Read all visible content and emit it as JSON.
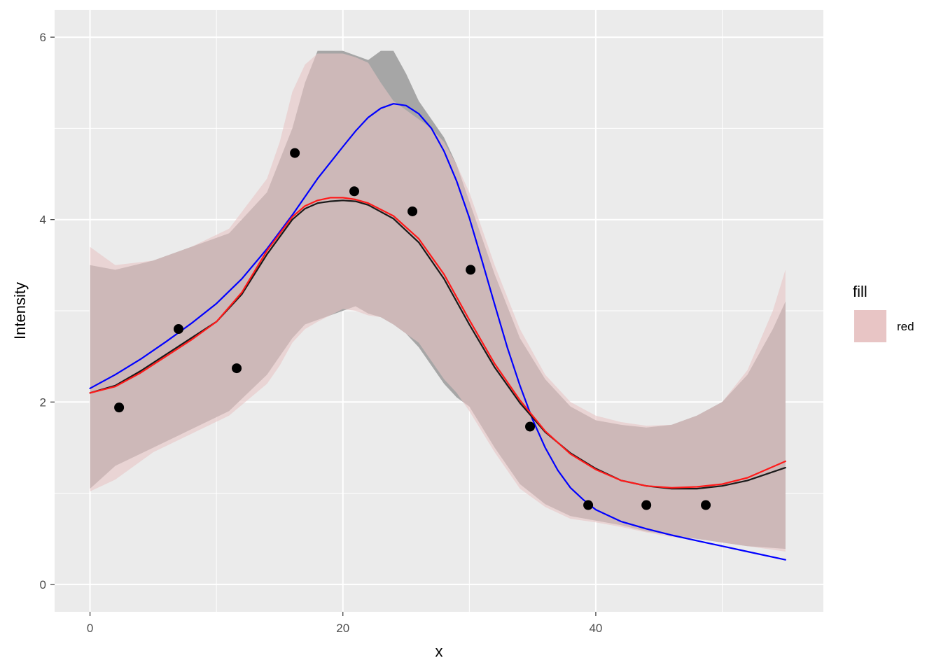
{
  "chart_data": {
    "type": "line",
    "xlabel": "x",
    "ylabel": "Intensity",
    "xlim": [
      -2.8,
      58
    ],
    "ylim": [
      -0.3,
      6.3
    ],
    "x_ticks": [
      0,
      20,
      40
    ],
    "x_tick_labels": [
      "0",
      "20",
      "40"
    ],
    "y_ticks": [
      0,
      2,
      4,
      6
    ],
    "y_tick_labels": [
      "0",
      "2",
      "4",
      "6"
    ],
    "grid": true,
    "legend": {
      "title": "fill",
      "position": "right",
      "items": [
        {
          "label": "red",
          "color": "#e8c5c5"
        }
      ]
    },
    "colors": {
      "panel": "#ebebeb",
      "grid": "#ffffff",
      "band_gray": "#a6a6a6",
      "band_red": "#e8c5c5",
      "blue": "#0000ff",
      "red": "#ff1a1a",
      "black": "#1a1a1a"
    },
    "points": {
      "x": [
        2.3,
        7,
        11.6,
        16.2,
        20.9,
        25.5,
        30.1,
        34.8,
        39.4,
        44,
        48.7
      ],
      "y": [
        1.94,
        2.8,
        2.37,
        4.73,
        4.31,
        4.09,
        3.45,
        1.73,
        0.87,
        0.87,
        0.87
      ]
    },
    "band_gray": {
      "x": [
        0,
        2,
        5,
        8,
        11,
        14,
        16,
        17,
        18,
        19,
        20,
        21,
        22,
        23,
        24,
        25,
        26,
        27,
        28,
        29,
        30,
        32,
        34,
        36,
        38,
        40,
        42,
        44,
        46,
        48,
        50,
        52,
        54,
        55
      ],
      "upper": [
        3.5,
        3.45,
        3.55,
        3.7,
        3.85,
        4.3,
        5.0,
        5.5,
        5.85,
        5.85,
        5.85,
        5.8,
        5.75,
        5.85,
        5.85,
        5.6,
        5.3,
        5.1,
        4.9,
        4.6,
        4.2,
        3.4,
        2.7,
        2.25,
        1.95,
        1.8,
        1.75,
        1.72,
        1.75,
        1.85,
        2.0,
        2.3,
        2.8,
        3.1
      ],
      "lower": [
        1.05,
        1.3,
        1.5,
        1.7,
        1.9,
        2.3,
        2.7,
        2.85,
        2.9,
        2.95,
        3.0,
        3.05,
        2.97,
        2.93,
        2.85,
        2.75,
        2.6,
        2.4,
        2.2,
        2.05,
        1.95,
        1.5,
        1.1,
        0.88,
        0.75,
        0.7,
        0.65,
        0.58,
        0.54,
        0.5,
        0.46,
        0.42,
        0.4,
        0.39
      ]
    },
    "band_red": {
      "x": [
        0,
        2,
        5,
        8,
        11,
        14,
        15,
        16,
        17,
        18,
        19,
        20,
        21,
        22,
        23,
        24,
        25,
        26,
        27,
        28,
        29,
        30,
        32,
        34,
        36,
        38,
        40,
        42,
        44,
        46,
        48,
        50,
        52,
        54,
        55
      ],
      "upper": [
        3.7,
        3.5,
        3.55,
        3.7,
        3.9,
        4.45,
        4.85,
        5.4,
        5.7,
        5.82,
        5.82,
        5.82,
        5.78,
        5.72,
        5.5,
        5.3,
        5.2,
        5.1,
        5.0,
        4.85,
        4.6,
        4.3,
        3.5,
        2.8,
        2.3,
        2.0,
        1.85,
        1.78,
        1.74,
        1.75,
        1.85,
        2.0,
        2.35,
        3.0,
        3.45
      ],
      "lower": [
        1.02,
        1.15,
        1.45,
        1.65,
        1.85,
        2.2,
        2.4,
        2.65,
        2.8,
        2.88,
        2.95,
        3.02,
        3.0,
        2.95,
        2.93,
        2.85,
        2.75,
        2.65,
        2.45,
        2.25,
        2.1,
        1.9,
        1.45,
        1.05,
        0.85,
        0.72,
        0.68,
        0.63,
        0.57,
        0.52,
        0.5,
        0.46,
        0.42,
        0.38,
        0.36
      ]
    },
    "series": [
      {
        "color": "#0000ff",
        "x": [
          0,
          2,
          4,
          6,
          8,
          10,
          12,
          14,
          16,
          18,
          20,
          21,
          22,
          23,
          24,
          25,
          26,
          27,
          28,
          29,
          30,
          31,
          32,
          33,
          34,
          35,
          36,
          37,
          38,
          39,
          40,
          42,
          44,
          46,
          48,
          50,
          52,
          55
        ],
        "y": [
          2.15,
          2.3,
          2.47,
          2.66,
          2.86,
          3.08,
          3.35,
          3.68,
          4.05,
          4.45,
          4.8,
          4.97,
          5.12,
          5.22,
          5.27,
          5.25,
          5.16,
          5.0,
          4.75,
          4.42,
          4.02,
          3.55,
          3.07,
          2.6,
          2.18,
          1.81,
          1.5,
          1.25,
          1.06,
          0.93,
          0.82,
          0.69,
          0.61,
          0.54,
          0.48,
          0.42,
          0.36,
          0.27
        ]
      },
      {
        "color": "#1a1a1a",
        "x": [
          0,
          2,
          4,
          6,
          8,
          10,
          12,
          14,
          16,
          17,
          18,
          19,
          20,
          21,
          22,
          24,
          26,
          28,
          30,
          32,
          34,
          36,
          38,
          40,
          42,
          44,
          46,
          48,
          50,
          52,
          55
        ],
        "y": [
          2.1,
          2.18,
          2.34,
          2.52,
          2.7,
          2.88,
          3.18,
          3.62,
          4.0,
          4.12,
          4.18,
          4.2,
          4.21,
          4.2,
          4.16,
          4.01,
          3.75,
          3.35,
          2.85,
          2.38,
          1.99,
          1.67,
          1.44,
          1.27,
          1.14,
          1.08,
          1.05,
          1.05,
          1.08,
          1.14,
          1.28
        ]
      },
      {
        "color": "#ff1a1a",
        "x": [
          0,
          2,
          4,
          6,
          8,
          10,
          12,
          14,
          16,
          17,
          18,
          19,
          20,
          21,
          22,
          24,
          26,
          28,
          30,
          32,
          34,
          36,
          38,
          40,
          42,
          44,
          46,
          48,
          50,
          52,
          55
        ],
        "y": [
          2.1,
          2.17,
          2.32,
          2.5,
          2.68,
          2.88,
          3.2,
          3.66,
          4.03,
          4.15,
          4.21,
          4.24,
          4.24,
          4.22,
          4.18,
          4.04,
          3.79,
          3.4,
          2.9,
          2.42,
          2.02,
          1.68,
          1.43,
          1.26,
          1.14,
          1.08,
          1.06,
          1.07,
          1.1,
          1.17,
          1.35
        ]
      }
    ]
  }
}
